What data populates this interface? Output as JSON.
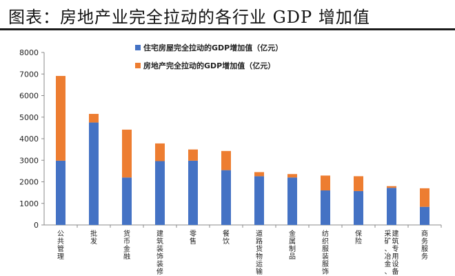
{
  "header": {
    "title": "图表：房地产业完全拉动的各行业 GDP 增加值"
  },
  "colors": {
    "series1": "#4472C4",
    "series2": "#ED7D31",
    "axis": "#888888"
  },
  "chart_data": {
    "type": "bar",
    "stacked": true,
    "title": "",
    "categories": [
      "公共管理",
      "批发",
      "货币金融",
      "建筑装饰装修",
      "零售",
      "餐饮",
      "道路货物运输",
      "金属制品",
      "纺织服装服饰",
      "保险",
      "采矿、冶金、建筑专用设备",
      "商务服务"
    ],
    "series": [
      {
        "name": "住宅房屋完全拉动的GDP增加值（亿元）",
        "values": [
          2980,
          4750,
          2200,
          2960,
          2980,
          2540,
          2260,
          2200,
          1600,
          1570,
          1720,
          840
        ]
      },
      {
        "name": "房地产完全拉动的GDP增加值（亿元）",
        "values": [
          3930,
          400,
          2220,
          820,
          520,
          890,
          190,
          160,
          690,
          690,
          80,
          860
        ]
      }
    ],
    "yticks": [
      "0",
      "1000",
      "2000",
      "3000",
      "4000",
      "5000",
      "6000",
      "7000",
      "8000"
    ],
    "ylim": [
      0,
      8000
    ],
    "legend_position": "top-left inside plot",
    "grid": false
  }
}
